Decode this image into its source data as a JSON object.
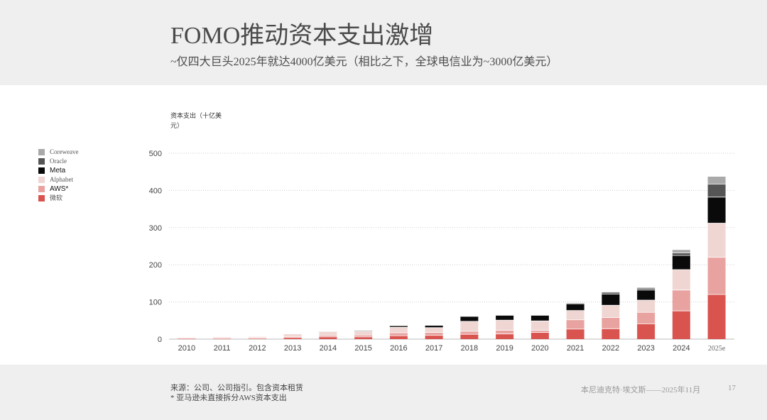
{
  "header": {
    "title": "FOMO推动资本支出激增",
    "subtitle": "~仅四大巨头2025年就达4000亿美元（相比之下，全球电信业为~3000亿美元）"
  },
  "footer": {
    "source": "来源：公司、公司指引。包含资本租赁",
    "note": "* 亚马逊未直接拆分AWS资本支出",
    "author": "本尼迪克特·埃文斯——2025年11月",
    "page": "17"
  },
  "chart_data": {
    "type": "bar",
    "stacked": true,
    "ylabel": "资本支出（十亿美元）",
    "ylim": [
      0,
      500
    ],
    "yticks": [
      0,
      100,
      200,
      300,
      400,
      500
    ],
    "grid": true,
    "legend_position": "left",
    "categories": [
      "2010",
      "2011",
      "2012",
      "2013",
      "2014",
      "2015",
      "2016",
      "2017",
      "2018",
      "2019",
      "2020",
      "2021",
      "2022",
      "2023",
      "2024",
      "2025e"
    ],
    "series": [
      {
        "name": "微软",
        "color": "#d9534f",
        "values": [
          2,
          2,
          2,
          4,
          6,
          6,
          9,
          10,
          13,
          14,
          18,
          27,
          28,
          41,
          76,
          120
        ]
      },
      {
        "name": "AWS*",
        "color": "#e8a3a0",
        "values": [
          1,
          1,
          2,
          3,
          4,
          5,
          8,
          8,
          8,
          10,
          6,
          25,
          30,
          31,
          56,
          100
        ]
      },
      {
        "name": "Alphabet",
        "color": "#f0d6d3",
        "values": [
          2,
          3,
          3,
          7,
          10,
          10,
          15,
          13,
          27,
          27,
          25,
          25,
          33,
          33,
          55,
          92
        ]
      },
      {
        "name": "Meta",
        "color": "#0a0a0a",
        "values": [
          0,
          0,
          0,
          1,
          1,
          2,
          4,
          6,
          13,
          13,
          15,
          18,
          30,
          27,
          38,
          70
        ]
      },
      {
        "name": "Oracle",
        "color": "#555555",
        "values": [
          0,
          0,
          0,
          0,
          0,
          0,
          1,
          1,
          1,
          1,
          1,
          2,
          5,
          5,
          7,
          35
        ]
      },
      {
        "name": "Coreweave",
        "color": "#a9a9a9",
        "values": [
          0,
          0,
          0,
          0,
          0,
          0,
          0,
          0,
          0,
          0,
          0,
          0,
          1,
          2,
          8,
          20
        ]
      }
    ]
  }
}
